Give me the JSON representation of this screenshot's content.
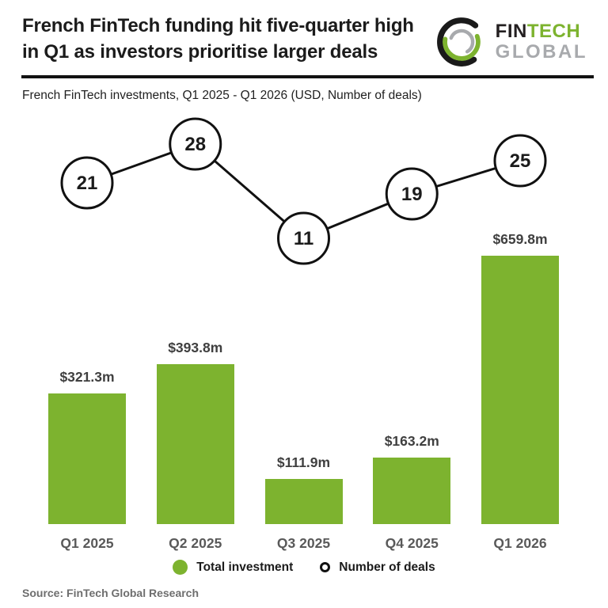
{
  "header": {
    "title_line1": "French FinTech funding hit five-quarter high",
    "title_line2": "in Q1 as investors prioritise larger deals",
    "logo": {
      "fin": "FIN",
      "tech": "TECH",
      "global": "GLOBAL"
    }
  },
  "subtitle": "French FinTech investments, Q1 2025 - Q1 2026 (USD, Number of deals)",
  "legend": {
    "items": [
      {
        "label": "Total investment",
        "marker": "filled-circle",
        "color": "#7db32f"
      },
      {
        "label": "Number of deals",
        "marker": "outlined-circle",
        "color": "#111111"
      }
    ]
  },
  "source": "Source: FinTech Global Research",
  "colors": {
    "bar_green": "#7db32f",
    "logo_green": "#7db32f",
    "logo_gray": "#a8aaad",
    "line_black": "#111111",
    "tick_gray": "#595959",
    "value_label_gray": "#3f3f3f",
    "source_gray": "#6e6e6e"
  },
  "chart_data": {
    "type": "bar",
    "title": "French FinTech investments, Q1 2025 - Q1 2026 (USD, Number of deals)",
    "categories": [
      "Q1 2025",
      "Q2 2025",
      "Q3 2025",
      "Q4 2025",
      "Q1 2026"
    ],
    "series": [
      {
        "name": "Total investment",
        "type": "bar",
        "unit": "USD millions",
        "values": [
          321.3,
          393.8,
          111.9,
          163.2,
          659.8
        ],
        "labels": [
          "$321.3m",
          "$393.8m",
          "$111.9m",
          "$163.2m",
          "$659.8m"
        ],
        "color": "#7db32f"
      },
      {
        "name": "Number of deals",
        "type": "line",
        "marker": "open-circle",
        "values": [
          21,
          28,
          11,
          19,
          25
        ],
        "color": "#111111"
      }
    ],
    "xlabel": "",
    "ylabel": "",
    "grid": false,
    "legend_position": "bottom",
    "axis_lines": false
  }
}
